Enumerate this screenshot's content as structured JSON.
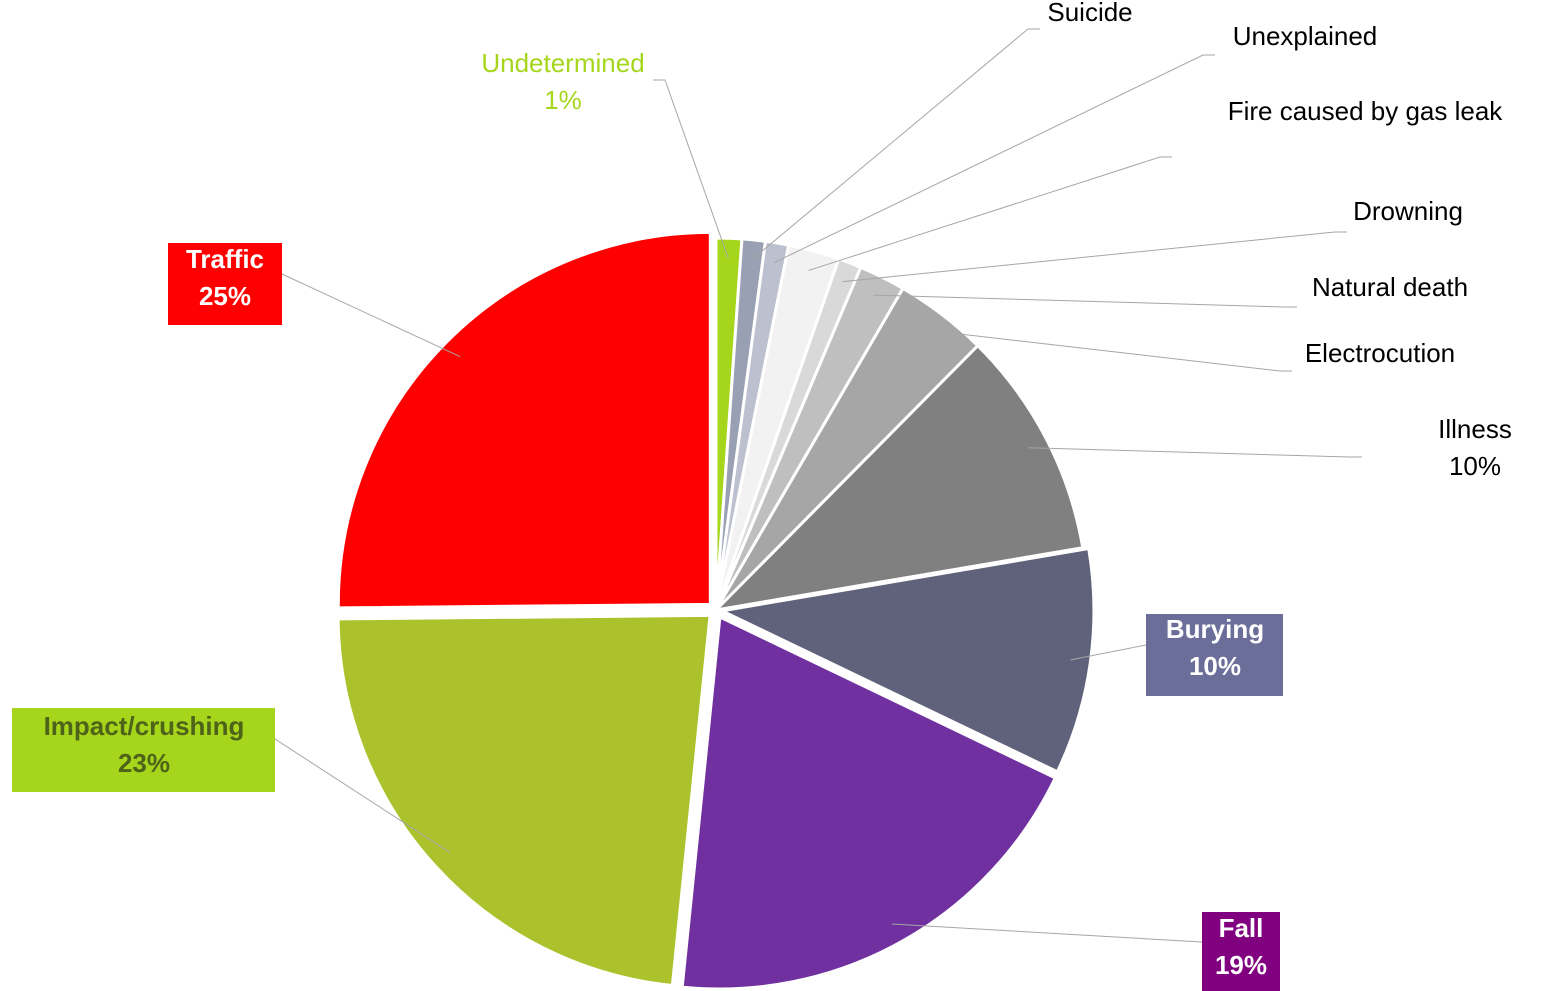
{
  "chart_data": {
    "type": "pie",
    "title": "",
    "start_angle_deg": 0,
    "direction": "clockwise",
    "slices": [
      {
        "name": "Undetermined",
        "value": 1.1,
        "percent_label": "1%",
        "color": "#a6d61c",
        "label_color": "#a6d61c"
      },
      {
        "name": "Suicide",
        "value": 1.0,
        "percent_label": "",
        "color": "#9aa0b4"
      },
      {
        "name": "Unexplained",
        "value": 1.0,
        "percent_label": "",
        "color": "#bcc0cf"
      },
      {
        "name": "Fire caused by gas leak",
        "value": 2.2,
        "percent_label": "",
        "color": "#f2f2f2"
      },
      {
        "name": "Drowning",
        "value": 1.0,
        "percent_label": "",
        "color": "#d9d9d9"
      },
      {
        "name": "Natural death",
        "value": 2.0,
        "percent_label": "",
        "color": "#bfbfbf"
      },
      {
        "name": "Electrocution",
        "value": 4.0,
        "percent_label": "",
        "color": "#a6a6a6"
      },
      {
        "name": "Illness",
        "value": 9.8,
        "percent_label": "10%",
        "color": "#808080"
      },
      {
        "name": "Burying",
        "value": 9.7,
        "percent_label": "10%",
        "color": "#5f627a",
        "label_bg": "#6b6e99",
        "label_color": "#ffffff",
        "bold": true
      },
      {
        "name": "Fall",
        "value": 19.3,
        "percent_label": "19%",
        "color": "#7030a0",
        "label_bg": "#800080",
        "label_color": "#ffffff",
        "bold": true
      },
      {
        "name": "Impact/crushing",
        "value": 23.0,
        "percent_label": "23%",
        "color": "#abc22c",
        "label_bg": "#a6d61c",
        "label_color": "#4d6319",
        "bold": true
      },
      {
        "name": "Traffic",
        "value": 24.9,
        "percent_label": "25%",
        "color": "#ff0000",
        "label_bg": "#ff0000",
        "label_color": "#ffffff",
        "bold": true
      }
    ],
    "legend": "none",
    "label_leader_lines": true
  }
}
